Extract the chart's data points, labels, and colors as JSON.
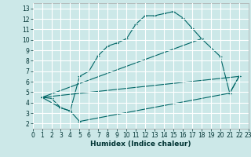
{
  "title": "",
  "xlabel": "Humidex (Indice chaleur)",
  "bg_color": "#cce8e8",
  "grid_color": "#ffffff",
  "line_color": "#006666",
  "xlim": [
    0,
    23
  ],
  "ylim": [
    1.5,
    13.5
  ],
  "xticks": [
    0,
    1,
    2,
    3,
    4,
    5,
    6,
    7,
    8,
    9,
    10,
    11,
    12,
    13,
    14,
    15,
    16,
    17,
    18,
    19,
    20,
    21,
    22,
    23
  ],
  "yticks": [
    2,
    3,
    4,
    5,
    6,
    7,
    8,
    9,
    10,
    11,
    12,
    13
  ],
  "line1_x": [
    1,
    2,
    3,
    4,
    5,
    6,
    7,
    8,
    9,
    10,
    11,
    12,
    13,
    14,
    15,
    16,
    17,
    18
  ],
  "line1_y": [
    4.5,
    4.4,
    3.5,
    3.2,
    6.5,
    7.0,
    8.5,
    9.4,
    9.7,
    10.1,
    11.5,
    12.3,
    12.3,
    12.5,
    12.7,
    12.1,
    11.1,
    10.1
  ],
  "line2_x": [
    1,
    3,
    4,
    5,
    21,
    22
  ],
  "line2_y": [
    4.5,
    3.5,
    3.2,
    2.2,
    4.9,
    6.5
  ],
  "line3_x": [
    1,
    18,
    20,
    21,
    22
  ],
  "line3_y": [
    4.5,
    10.1,
    8.4,
    4.9,
    6.5
  ],
  "line4_x": [
    1,
    22
  ],
  "line4_y": [
    4.5,
    6.5
  ],
  "tick_fontsize": 5.5,
  "xlabel_fontsize": 6.5
}
